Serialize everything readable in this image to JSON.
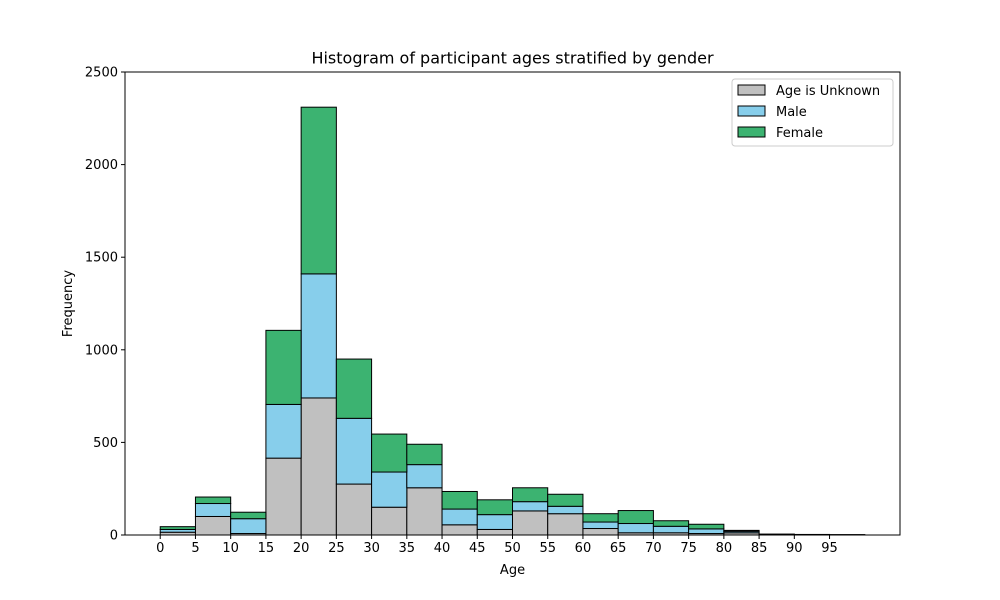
{
  "chart_data": {
    "type": "bar",
    "stacked": true,
    "title": "Histogram of participant ages stratified by gender",
    "xlabel": "Age",
    "ylabel": "Frequency",
    "bin_edges": [
      0,
      5,
      10,
      15,
      20,
      25,
      30,
      35,
      40,
      45,
      50,
      55,
      60,
      65,
      70,
      75,
      80,
      85,
      90,
      95,
      100
    ],
    "x_ticks": [
      0,
      5,
      10,
      15,
      20,
      25,
      30,
      35,
      40,
      45,
      50,
      55,
      60,
      65,
      70,
      75,
      80,
      85,
      90,
      95
    ],
    "x_tick_labels": [
      "0",
      "5",
      "10",
      "15",
      "20",
      "25",
      "30",
      "35",
      "40",
      "45",
      "50",
      "55",
      "60",
      "65",
      "70",
      "75",
      "80",
      "85",
      "90",
      "95"
    ],
    "xlim": [
      -5,
      105
    ],
    "ylim": [
      0,
      2500
    ],
    "y_ticks": [
      0,
      500,
      1000,
      1500,
      2000,
      2500
    ],
    "y_tick_labels": [
      "0",
      "500",
      "1000",
      "1500",
      "2000",
      "2500"
    ],
    "grid": false,
    "legend_position": "upper right",
    "series": [
      {
        "name": "Age is Unknown",
        "color": "#c0c0c0",
        "values": [
          15,
          100,
          8,
          415,
          740,
          275,
          150,
          255,
          55,
          30,
          130,
          115,
          35,
          12,
          12,
          8,
          12,
          0,
          0,
          0
        ]
      },
      {
        "name": "Male",
        "color": "#87ceeb",
        "values": [
          15,
          70,
          80,
          290,
          670,
          355,
          190,
          125,
          85,
          80,
          50,
          40,
          35,
          50,
          35,
          25,
          8,
          3,
          1,
          1
        ]
      },
      {
        "name": "Female",
        "color": "#3cb371",
        "values": [
          15,
          35,
          35,
          400,
          900,
          320,
          205,
          110,
          95,
          80,
          75,
          65,
          45,
          70,
          30,
          25,
          5,
          2,
          2,
          1
        ]
      }
    ]
  }
}
